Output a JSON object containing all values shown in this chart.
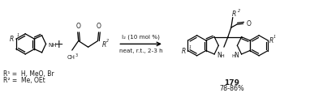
{
  "background_color": "#ffffff",
  "text_color": "#1a1a1a",
  "reaction_conditions_line1": "I₂ (10 mol %)",
  "reaction_conditions_line2": "neat, r.t., 2-3 h",
  "compound_number": "179",
  "yield_text": "78-86%",
  "r1_label": "R¹ =  H, MeO, Br",
  "r2_label": "R² =  Me, OEt",
  "figwidth": 3.82,
  "figheight": 1.16,
  "dpi": 100
}
